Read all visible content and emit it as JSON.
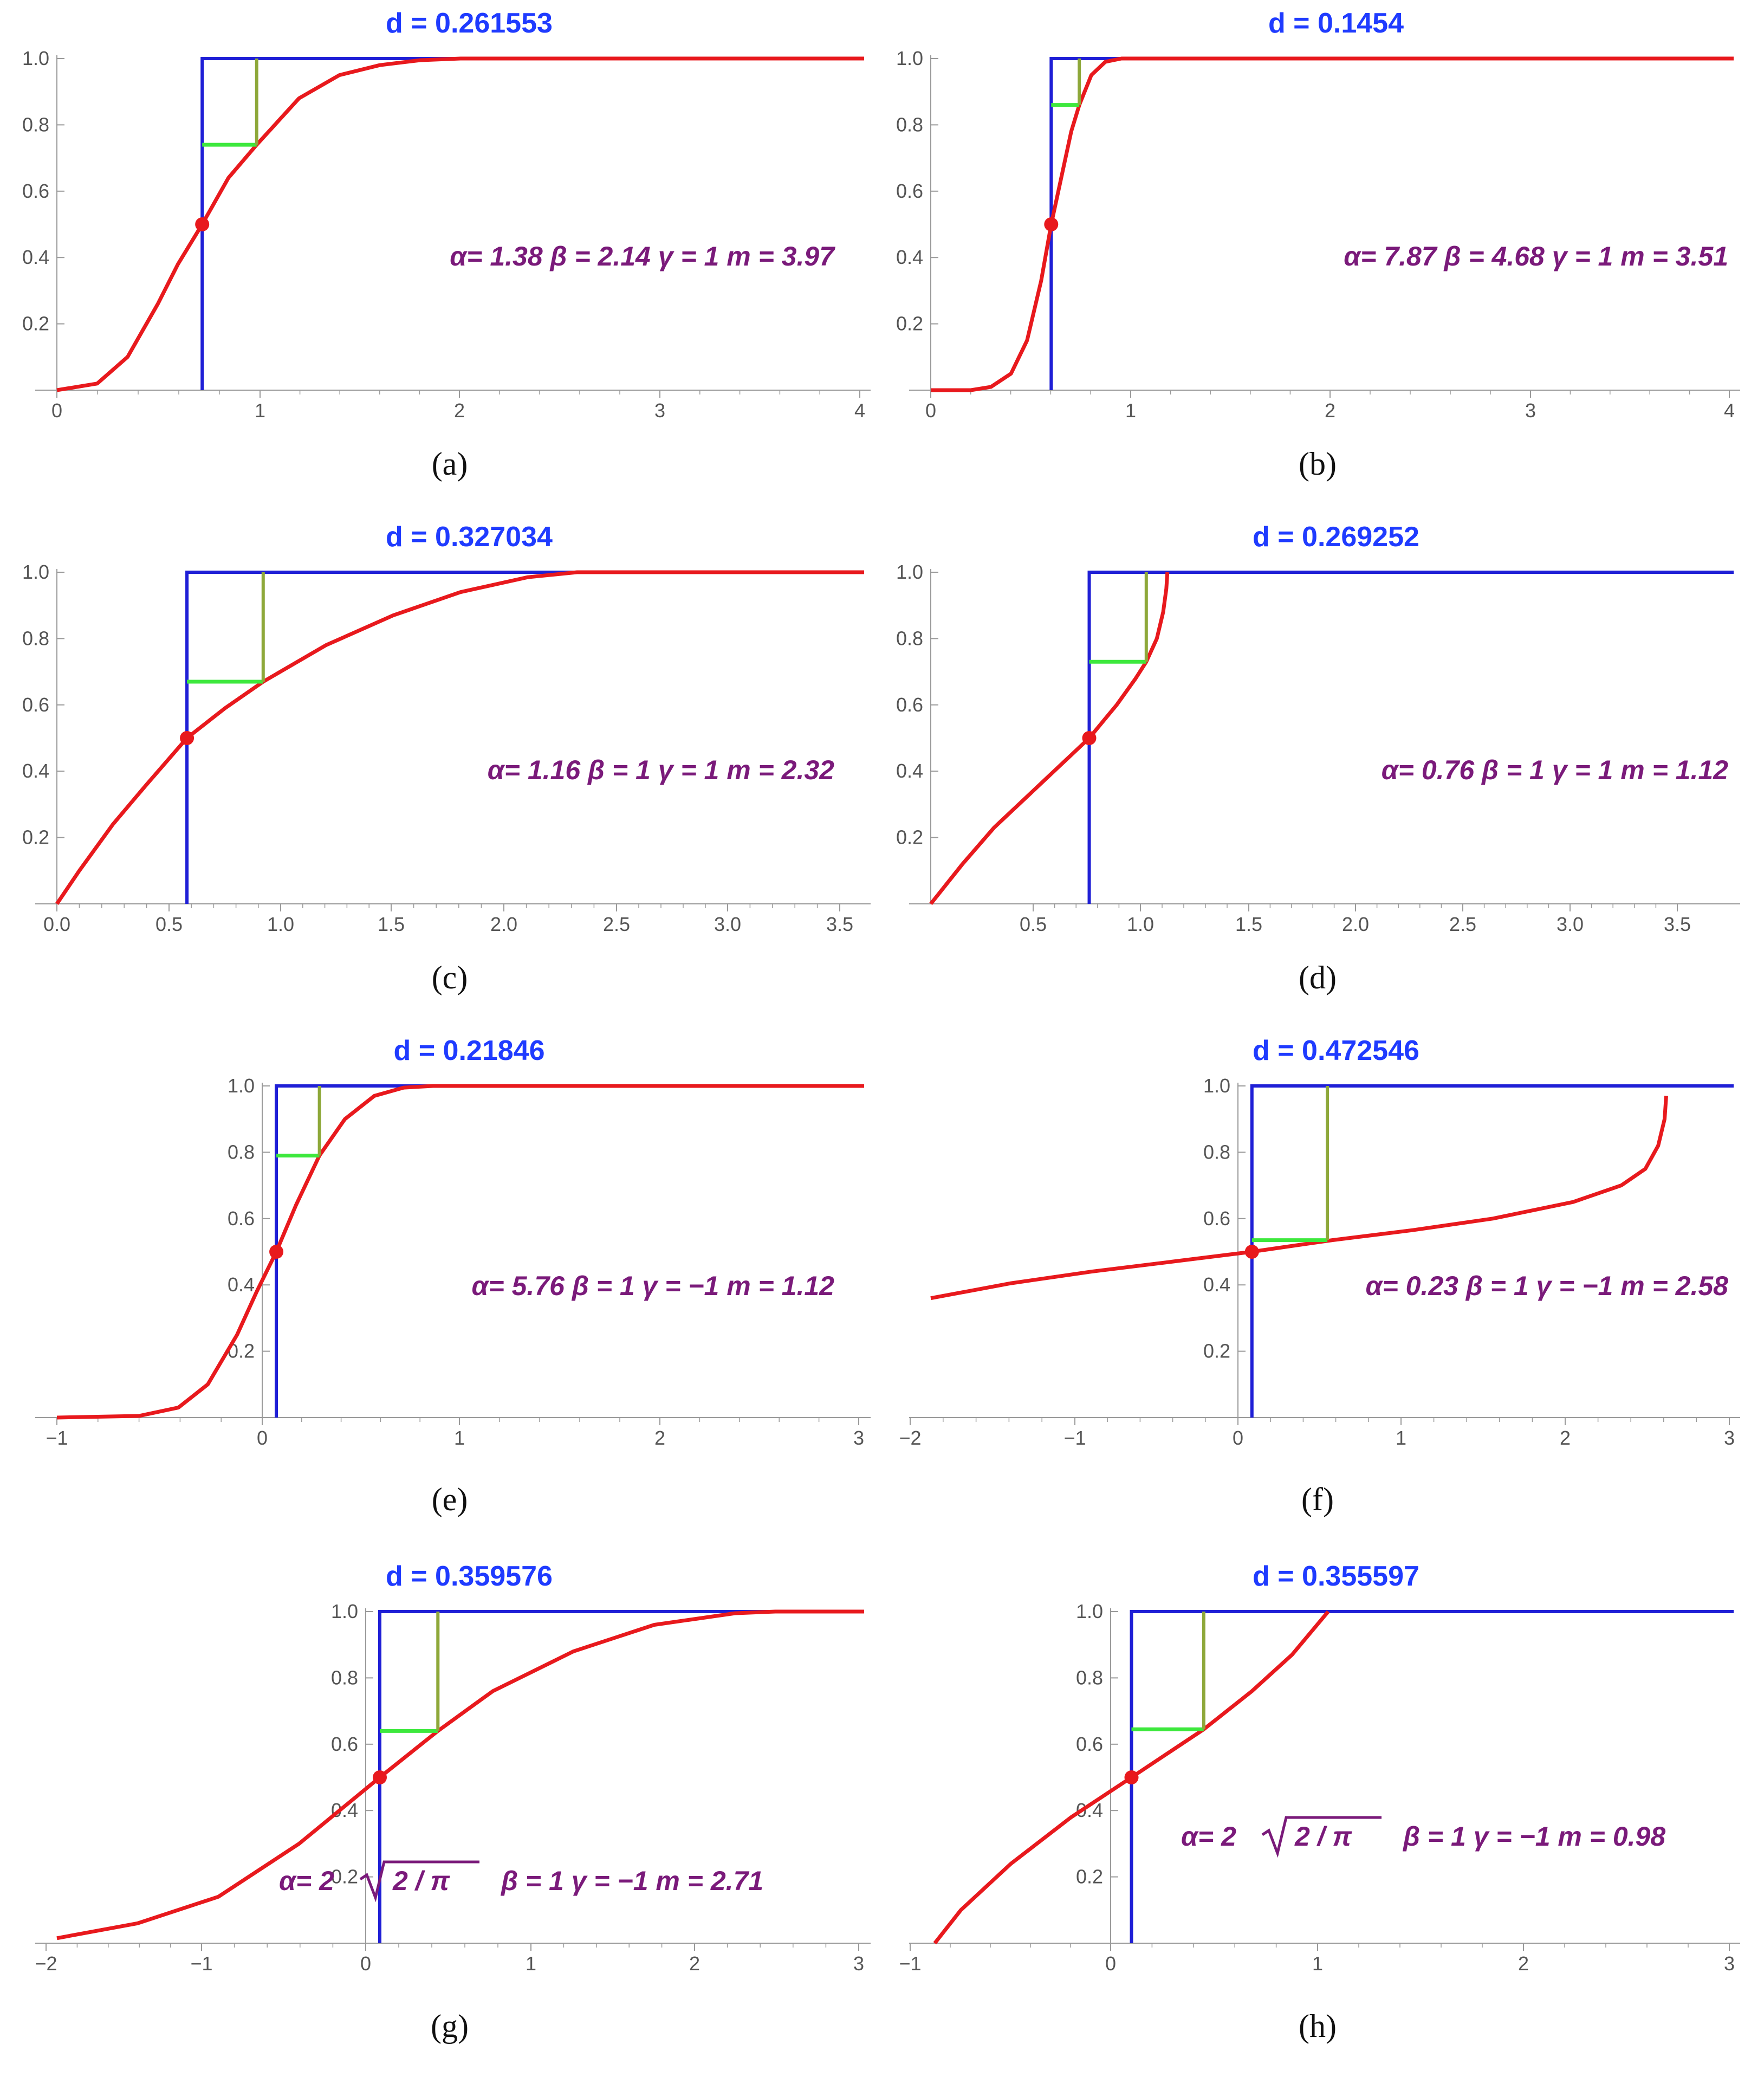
{
  "colors": {
    "curve": "#e8191d",
    "step": "#1f1fd6",
    "horizontal_marker": "#3de83d",
    "vertical_marker": "#8ea83a",
    "median_point": "#e8191d",
    "title": "#1f3bff",
    "annotation": "#7a1a7a",
    "axis": "#9a9a9a",
    "tick_label": "#555555"
  },
  "chart_data": [
    {
      "panel": "a",
      "caption": "(a)",
      "type": "line",
      "title": "d = 0.261553",
      "annotation": "α= 1.38  β = 2.14  γ = 1  m = 3.97",
      "xlim": [
        0,
        4
      ],
      "ylim": [
        0,
        1
      ],
      "xticks": [
        "0",
        "1",
        "2",
        "3",
        "4"
      ],
      "yticks": [
        "0.2",
        "0.4",
        "0.6",
        "0.8",
        "1.0"
      ],
      "step_x": 0.72,
      "marker": {
        "x": 0.99,
        "y": 0.74
      },
      "median_point": {
        "x": 0.72,
        "y": 0.5
      },
      "series": [
        {
          "points": [
            [
              0,
              0
            ],
            [
              0.2,
              0.02
            ],
            [
              0.35,
              0.1
            ],
            [
              0.5,
              0.26
            ],
            [
              0.6,
              0.38
            ],
            [
              0.72,
              0.5
            ],
            [
              0.85,
              0.64
            ],
            [
              0.99,
              0.74
            ],
            [
              1.2,
              0.88
            ],
            [
              1.4,
              0.95
            ],
            [
              1.6,
              0.98
            ],
            [
              1.8,
              0.995
            ],
            [
              2.0,
              1.0
            ],
            [
              2.5,
              1.0
            ],
            [
              4.0,
              1.0
            ]
          ]
        }
      ]
    },
    {
      "panel": "b",
      "caption": "(b)",
      "type": "line",
      "title": "d = 0.1454",
      "annotation": "α= 7.87  β = 4.68  γ = 1  m = 3.51",
      "xlim": [
        0,
        4
      ],
      "ylim": [
        0,
        1
      ],
      "xticks": [
        "0",
        "1",
        "2",
        "3",
        "4"
      ],
      "yticks": [
        "0.2",
        "0.4",
        "0.6",
        "0.8",
        "1.0"
      ],
      "step_x": 0.6,
      "marker": {
        "x": 0.74,
        "y": 0.86
      },
      "median_point": {
        "x": 0.6,
        "y": 0.5
      },
      "series": [
        {
          "points": [
            [
              0,
              0
            ],
            [
              0.2,
              0.0
            ],
            [
              0.3,
              0.01
            ],
            [
              0.4,
              0.05
            ],
            [
              0.48,
              0.15
            ],
            [
              0.55,
              0.33
            ],
            [
              0.6,
              0.5
            ],
            [
              0.65,
              0.64
            ],
            [
              0.7,
              0.78
            ],
            [
              0.74,
              0.86
            ],
            [
              0.8,
              0.95
            ],
            [
              0.87,
              0.99
            ],
            [
              0.95,
              1.0
            ],
            [
              2.0,
              1.0
            ],
            [
              4.0,
              1.0
            ]
          ]
        }
      ]
    },
    {
      "panel": "c",
      "caption": "(c)",
      "type": "line",
      "title": "d = 0.327034",
      "annotation": "α= 1.16  β = 1  γ = 1  m = 2.32",
      "xlim": [
        0,
        3.6
      ],
      "ylim": [
        0,
        1
      ],
      "xticks": [
        "0.0",
        "0.5",
        "1.0",
        "1.5",
        "2.0",
        "2.5",
        "3.0",
        "3.5"
      ],
      "yticks": [
        "0.2",
        "0.4",
        "0.6",
        "0.8",
        "1.0"
      ],
      "step_x": 0.58,
      "marker": {
        "x": 0.92,
        "y": 0.67
      },
      "median_point": {
        "x": 0.58,
        "y": 0.5
      },
      "series": [
        {
          "points": [
            [
              0,
              0
            ],
            [
              0.1,
              0.1
            ],
            [
              0.25,
              0.24
            ],
            [
              0.4,
              0.36
            ],
            [
              0.58,
              0.5
            ],
            [
              0.75,
              0.59
            ],
            [
              0.92,
              0.67
            ],
            [
              1.2,
              0.78
            ],
            [
              1.5,
              0.87
            ],
            [
              1.8,
              0.94
            ],
            [
              2.1,
              0.985
            ],
            [
              2.32,
              1.0
            ],
            [
              3.6,
              1.0
            ]
          ]
        }
      ]
    },
    {
      "panel": "d",
      "caption": "(d)",
      "type": "line",
      "title": "d = 0.269252",
      "annotation": "α= 0.76  β = 1  γ = 1  m = 1.12",
      "xlim": [
        0,
        3.8
      ],
      "ylim": [
        0,
        1
      ],
      "xticks": [
        "0.5",
        "1.0",
        "1.5",
        "2.0",
        "2.5",
        "3.0",
        "3.5"
      ],
      "yticks": [
        "0.2",
        "0.4",
        "0.6",
        "0.8",
        "1.0"
      ],
      "step_x": 0.75,
      "marker": {
        "x": 1.02,
        "y": 0.73
      },
      "median_point": {
        "x": 0.75,
        "y": 0.5
      },
      "series": [
        {
          "points": [
            [
              0,
              0
            ],
            [
              0.15,
              0.12
            ],
            [
              0.3,
              0.23
            ],
            [
              0.45,
              0.32
            ],
            [
              0.6,
              0.41
            ],
            [
              0.75,
              0.5
            ],
            [
              0.88,
              0.6
            ],
            [
              0.97,
              0.68
            ],
            [
              1.02,
              0.73
            ],
            [
              1.07,
              0.8
            ],
            [
              1.1,
              0.88
            ],
            [
              1.115,
              0.95
            ],
            [
              1.12,
              1.0
            ]
          ]
        }
      ]
    },
    {
      "panel": "e",
      "caption": "(e)",
      "type": "line",
      "title": "d = 0.21846",
      "annotation": "α= 5.76  β = 1  γ = −1  m = 1.12",
      "xlim": [
        -1.12,
        3
      ],
      "ylim": [
        0,
        1
      ],
      "xticks": [
        "−1",
        "0",
        "1",
        "2",
        "3"
      ],
      "yticks": [
        "0.2",
        "0.4",
        "0.6",
        "0.8",
        "1.0"
      ],
      "step_x": 0.0,
      "marker": {
        "x": 0.22,
        "y": 0.79
      },
      "median_point": {
        "x": 0.0,
        "y": 0.5
      },
      "series": [
        {
          "points": [
            [
              -1.12,
              0
            ],
            [
              -0.7,
              0.005
            ],
            [
              -0.5,
              0.03
            ],
            [
              -0.35,
              0.1
            ],
            [
              -0.2,
              0.25
            ],
            [
              -0.1,
              0.38
            ],
            [
              0,
              0.5
            ],
            [
              0.1,
              0.64
            ],
            [
              0.22,
              0.79
            ],
            [
              0.35,
              0.9
            ],
            [
              0.5,
              0.97
            ],
            [
              0.65,
              0.995
            ],
            [
              0.8,
              1.0
            ],
            [
              3,
              1.0
            ]
          ]
        }
      ]
    },
    {
      "panel": "f",
      "caption": "(f)",
      "type": "line",
      "title": "d = 0.472546",
      "annotation": "α= 0.23  β = 1  γ = −1  m = 2.58",
      "xlim": [
        -2,
        3
      ],
      "ylim": [
        0,
        1
      ],
      "xticks": [
        "−2",
        "−1",
        "0",
        "1",
        "2",
        "3"
      ],
      "yticks": [
        "0.2",
        "0.4",
        "0.6",
        "0.8",
        "1.0"
      ],
      "step_x": 0.0,
      "marker": {
        "x": 0.47,
        "y": 0.535
      },
      "median_point": {
        "x": 0.0,
        "y": 0.5
      },
      "series": [
        {
          "points": [
            [
              -2,
              0.36
            ],
            [
              -1.5,
              0.405
            ],
            [
              -1,
              0.44
            ],
            [
              -0.5,
              0.47
            ],
            [
              0,
              0.5
            ],
            [
              0.5,
              0.535
            ],
            [
              1,
              0.565
            ],
            [
              1.5,
              0.6
            ],
            [
              2,
              0.65
            ],
            [
              2.3,
              0.7
            ],
            [
              2.45,
              0.75
            ],
            [
              2.53,
              0.82
            ],
            [
              2.57,
              0.9
            ],
            [
              2.58,
              0.97
            ]
          ]
        }
      ]
    },
    {
      "panel": "g",
      "caption": "(g)",
      "type": "line",
      "title": "d = 0.359576",
      "annotation_prefix": "α= 2",
      "annotation_radicand": "2 / π",
      "annotation_suffix": "β = 1  γ = −1  m = 2.71",
      "xlim": [
        -2,
        3
      ],
      "ylim": [
        0,
        1
      ],
      "xticks": [
        "−2",
        "−1",
        "0",
        "1",
        "2",
        "3"
      ],
      "yticks": [
        "0.2",
        "0.4",
        "0.6",
        "0.8",
        "1.0"
      ],
      "step_x": 0.0,
      "marker": {
        "x": 0.36,
        "y": 0.64
      },
      "median_point": {
        "x": 0.0,
        "y": 0.5
      },
      "series": [
        {
          "points": [
            [
              -2,
              0.015
            ],
            [
              -1.5,
              0.06
            ],
            [
              -1,
              0.14
            ],
            [
              -0.5,
              0.3
            ],
            [
              0,
              0.5
            ],
            [
              0.36,
              0.64
            ],
            [
              0.7,
              0.76
            ],
            [
              1.2,
              0.88
            ],
            [
              1.7,
              0.96
            ],
            [
              2.2,
              0.995
            ],
            [
              2.45,
              1.0
            ],
            [
              3,
              1.0
            ]
          ]
        }
      ]
    },
    {
      "panel": "h",
      "caption": "(h)",
      "type": "line",
      "title": "d = 0.355597",
      "annotation_prefix": "α= 2",
      "annotation_radicand": "2 / π",
      "annotation_suffix": "β = 1  γ = −1  m = 0.98",
      "xlim": [
        -1,
        3
      ],
      "ylim": [
        0,
        1
      ],
      "xticks": [
        "−1",
        "0",
        "1",
        "2",
        "3"
      ],
      "yticks": [
        "0.2",
        "0.4",
        "0.6",
        "0.8",
        "1.0"
      ],
      "step_x": 0.0,
      "marker": {
        "x": 0.36,
        "y": 0.645
      },
      "median_point": {
        "x": 0.0,
        "y": 0.5
      },
      "series": [
        {
          "points": [
            [
              -0.98,
              0
            ],
            [
              -0.85,
              0.1
            ],
            [
              -0.6,
              0.24
            ],
            [
              -0.3,
              0.38
            ],
            [
              0,
              0.5
            ],
            [
              0.36,
              0.645
            ],
            [
              0.6,
              0.76
            ],
            [
              0.8,
              0.87
            ],
            [
              0.98,
              1.0
            ]
          ]
        }
      ]
    }
  ]
}
